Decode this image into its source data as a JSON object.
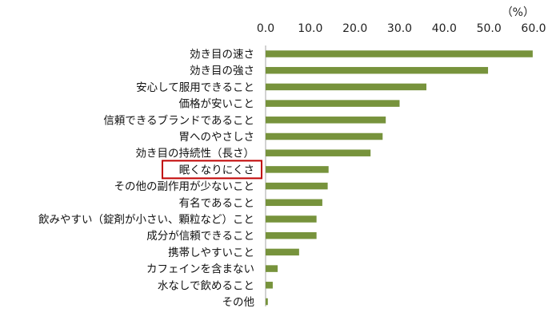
{
  "chart_data": {
    "type": "bar",
    "orientation": "horizontal",
    "title": "",
    "xlabel": "",
    "ylabel": "",
    "unit_label": "（%）",
    "xlim": [
      0,
      60
    ],
    "xticks": [
      0,
      10,
      20,
      30,
      40,
      50,
      60
    ],
    "xtick_labels": [
      "0.0",
      "10.0",
      "20.0",
      "30.0",
      "40.0",
      "50.0",
      "60.0"
    ],
    "grid": false,
    "legend": "none",
    "bar_color": "#77933c",
    "highlight_color": "#c00000",
    "highlighted_category": "眠くなりにくさ",
    "categories": [
      "効き目の速さ",
      "効き目の強さ",
      "安心して服用できること",
      "価格が安いこと",
      "信頼できるブランドであること",
      "胃へのやさしさ",
      "効き目の持続性（長さ）",
      "眠くなりにくさ",
      "その他の副作用が少ないこと",
      "有名であること",
      "飲みやすい（錠剤が小さい、顆粒など）こと",
      "成分が信頼できること",
      "携帯しやすいこと",
      "カフェインを含まない",
      "水なしで飲めること",
      "その他"
    ],
    "values": [
      59.8,
      49.8,
      36.0,
      30.0,
      26.9,
      26.2,
      23.5,
      14.1,
      13.9,
      12.7,
      11.4,
      11.4,
      7.5,
      2.7,
      1.6,
      0.5
    ]
  }
}
